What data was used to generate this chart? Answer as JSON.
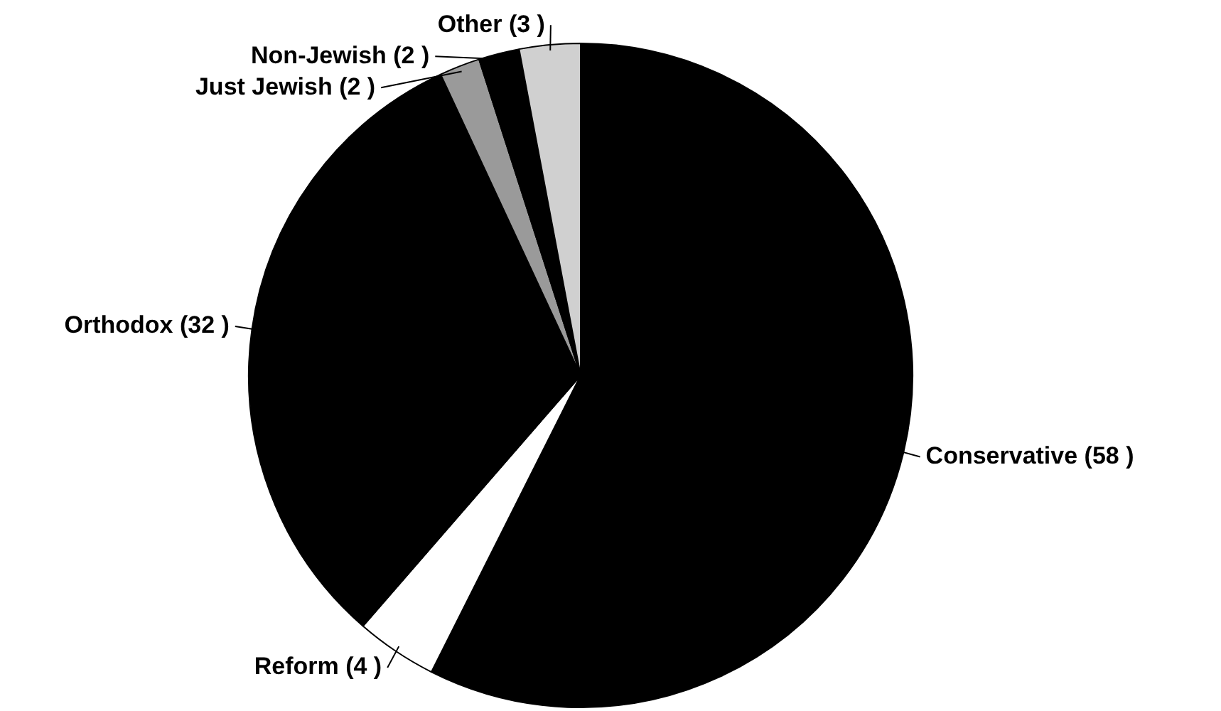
{
  "chart_data": {
    "type": "pie",
    "categories": [
      "Conservative (58 )",
      "Reform (4 )",
      "Orthodox (32 )",
      "Just Jewish (2 )",
      "Non-Jewish (2 )",
      "Other (3 )"
    ],
    "values": [
      58,
      4,
      32,
      2,
      2,
      3
    ],
    "colors": [
      "#000000",
      "#ffffff",
      "#000000",
      "#9a9a9a",
      "#000000",
      "#d0d0d0"
    ],
    "legend": false
  }
}
